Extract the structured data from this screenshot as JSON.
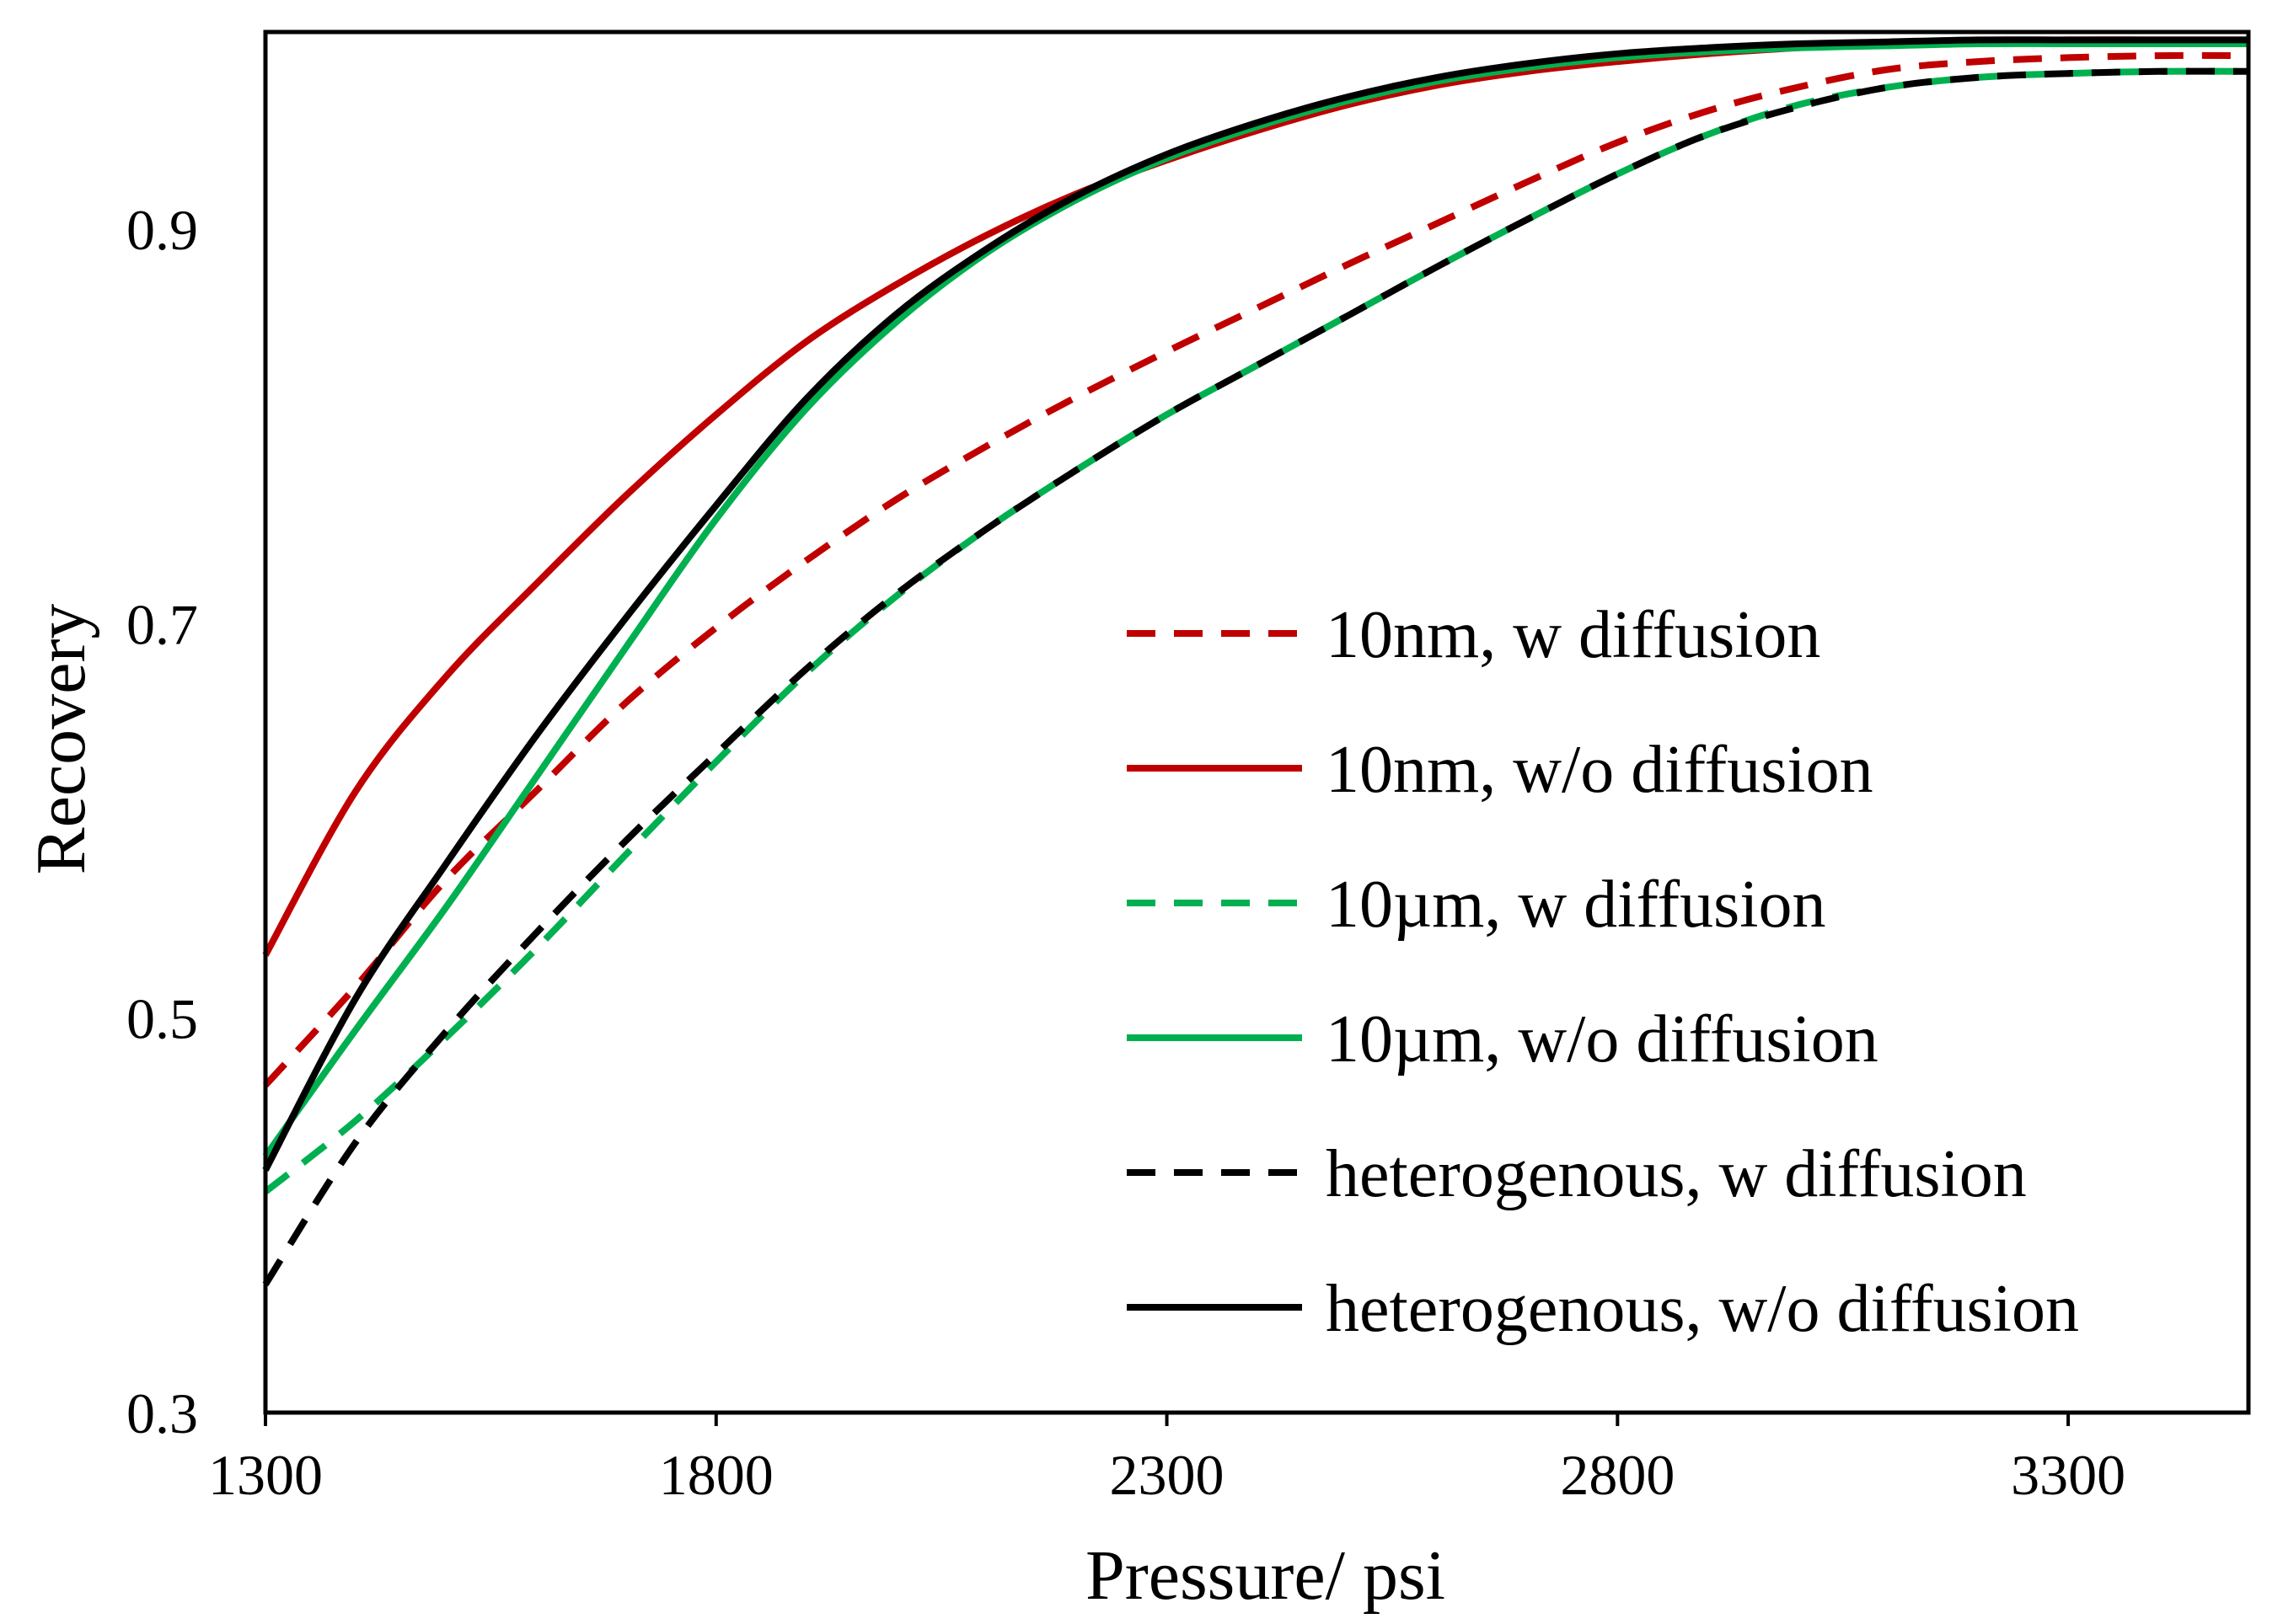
{
  "chart_data": {
    "type": "line",
    "title": "",
    "xlabel": "Pressure/ psi",
    "ylabel": "Recovery",
    "xlim": [
      1300,
      3500
    ],
    "ylim": [
      0.3,
      1.0
    ],
    "xticks": [
      1300,
      1800,
      2300,
      2800,
      3300
    ],
    "xtick_labels": [
      "1300",
      "1800",
      "2300",
      "2800",
      "3300"
    ],
    "yticks": [
      0.3,
      0.5,
      0.7,
      0.9
    ],
    "ytick_labels": [
      "0.3",
      "0.5",
      "0.7",
      "0.9"
    ],
    "grid": false,
    "legend_position": "center-right",
    "x": [
      1300,
      1400,
      1500,
      1600,
      1700,
      1800,
      1900,
      2000,
      2100,
      2200,
      2300,
      2400,
      2500,
      2600,
      2700,
      2800,
      2900,
      3000,
      3100,
      3200,
      3300,
      3400,
      3500
    ],
    "series": [
      {
        "name": "10nm, w diffusion",
        "color": "#c00000",
        "dash": "dashed",
        "values": [
          0.466,
          0.516,
          0.57,
          0.615,
          0.66,
          0.698,
          0.732,
          0.763,
          0.79,
          0.815,
          0.838,
          0.86,
          0.882,
          0.903,
          0.924,
          0.944,
          0.96,
          0.972,
          0.981,
          0.985,
          0.987,
          0.988,
          0.988
        ]
      },
      {
        "name": "10nm, w/o diffusion",
        "color": "#c00000",
        "dash": "solid",
        "values": [
          0.532,
          0.615,
          0.673,
          0.72,
          0.765,
          0.806,
          0.843,
          0.872,
          0.897,
          0.918,
          0.935,
          0.95,
          0.963,
          0.973,
          0.98,
          0.985,
          0.989,
          0.992,
          0.994,
          0.995,
          0.996,
          0.996,
          0.996
        ]
      },
      {
        "name": "10µm, w diffusion",
        "color": "#00b050",
        "dash": "dashed",
        "values": [
          0.412,
          0.448,
          0.49,
          0.535,
          0.583,
          0.63,
          0.675,
          0.714,
          0.748,
          0.778,
          0.806,
          0.831,
          0.856,
          0.881,
          0.905,
          0.928,
          0.948,
          0.963,
          0.972,
          0.977,
          0.979,
          0.98,
          0.98
        ]
      },
      {
        "name": "10µm, w/o diffusion",
        "color": "#00b050",
        "dash": "solid",
        "values": [
          0.43,
          0.494,
          0.556,
          0.622,
          0.688,
          0.753,
          0.809,
          0.853,
          0.888,
          0.915,
          0.936,
          0.952,
          0.965,
          0.975,
          0.982,
          0.987,
          0.99,
          0.992,
          0.993,
          0.994,
          0.994,
          0.994,
          0.994
        ]
      },
      {
        "name": "heterogenous, w diffusion",
        "color": "#000000",
        "dash": "dashed",
        "values": [
          0.365,
          0.437,
          0.493,
          0.543,
          0.59,
          0.634,
          0.677,
          0.715,
          0.748,
          0.778,
          0.806,
          0.831,
          0.856,
          0.881,
          0.905,
          0.928,
          0.948,
          0.962,
          0.972,
          0.977,
          0.979,
          0.98,
          0.98
        ]
      },
      {
        "name": "heterogenous, w/o diffusion",
        "color": "#000000",
        "dash": "solid",
        "values": [
          0.423,
          0.51,
          0.578,
          0.643,
          0.703,
          0.76,
          0.814,
          0.857,
          0.89,
          0.917,
          0.938,
          0.954,
          0.967,
          0.977,
          0.984,
          0.989,
          0.992,
          0.994,
          0.995,
          0.996,
          0.996,
          0.996,
          0.996
        ]
      }
    ]
  }
}
